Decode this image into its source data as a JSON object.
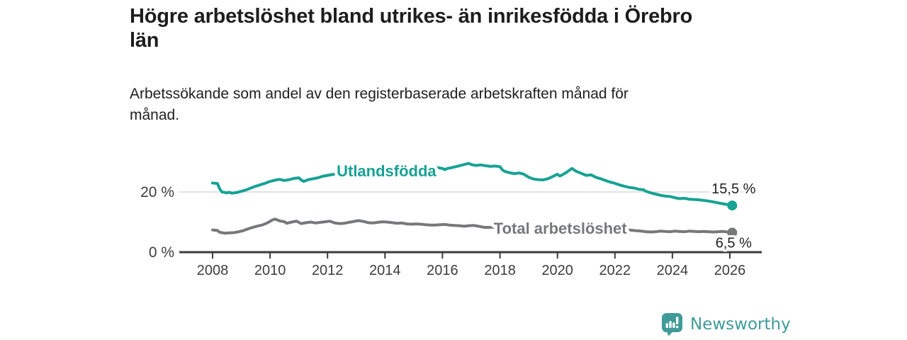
{
  "header": {
    "title_lines": [
      "Högre arbetslöshet bland utrikes- än inrikesfödda i Örebro",
      "län"
    ],
    "subtitle_lines": [
      "Arbetssökande som andel av den registerbaserade arbetskraften månad för",
      "månad."
    ]
  },
  "footer": {
    "brand": "Newsworthy",
    "brand_color": "#3f9b99",
    "logo_icon": "bar-chart-speech-bubble"
  },
  "colors": {
    "background": "#ffffff",
    "axis": "#3b3b3b",
    "grid": "#d8d8d8",
    "tick_text": "#3d3d3d",
    "value_text": "#1f1f1f"
  },
  "chart_data": {
    "type": "line",
    "title": "Högre arbetslöshet bland utrikes- än inrikesfödda i Örebro län",
    "subtitle": "Arbetssökande som andel av den registerbaserade arbetskraften månad för månad.",
    "xlabel": "",
    "ylabel": "",
    "xlim": [
      2006.85,
      2027.1
    ],
    "ylim": [
      0,
      35
    ],
    "grid": "horizontal-20-only",
    "legend_position": "inline-labels",
    "x_ticks": [
      2008,
      2010,
      2012,
      2014,
      2016,
      2018,
      2020,
      2022,
      2024,
      2026
    ],
    "y_ticks": [
      {
        "value": 0,
        "label": "0 %",
        "gridline": false
      },
      {
        "value": 20,
        "label": "20 %",
        "gridline": true
      }
    ],
    "series": [
      {
        "name": "Utlandsfödda",
        "color": "#17a295",
        "end_label": "15,5 %",
        "end_label_position": "above",
        "inline_label": {
          "text": "Utlandsfödda",
          "x": 2014.05,
          "y": 27.1
        },
        "points": [
          [
            2008.0,
            23.0
          ],
          [
            2008.17,
            22.8
          ],
          [
            2008.25,
            21.0
          ],
          [
            2008.33,
            20.0
          ],
          [
            2008.5,
            19.7
          ],
          [
            2008.58,
            19.9
          ],
          [
            2008.67,
            19.6
          ],
          [
            2008.83,
            19.8
          ],
          [
            2009.0,
            20.2
          ],
          [
            2009.17,
            20.7
          ],
          [
            2009.33,
            21.3
          ],
          [
            2009.5,
            21.9
          ],
          [
            2009.67,
            22.4
          ],
          [
            2009.83,
            22.9
          ],
          [
            2010.0,
            23.5
          ],
          [
            2010.17,
            23.9
          ],
          [
            2010.33,
            24.2
          ],
          [
            2010.5,
            23.8
          ],
          [
            2010.67,
            24.1
          ],
          [
            2010.83,
            24.5
          ],
          [
            2011.0,
            24.7
          ],
          [
            2011.08,
            24.0
          ],
          [
            2011.17,
            23.5
          ],
          [
            2011.33,
            24.1
          ],
          [
            2011.5,
            24.4
          ],
          [
            2011.67,
            24.7
          ],
          [
            2011.83,
            25.2
          ],
          [
            2012.0,
            25.5
          ],
          [
            2012.17,
            25.8
          ],
          [
            2012.33,
            25.9
          ],
          [
            2012.67,
            26.1
          ],
          [
            2013.0,
            26.4
          ],
          [
            2013.33,
            26.6
          ],
          [
            2013.67,
            26.8
          ],
          [
            2014.0,
            27.0
          ],
          [
            2014.33,
            27.2
          ],
          [
            2014.67,
            27.4
          ],
          [
            2015.0,
            27.5
          ],
          [
            2015.33,
            27.7
          ],
          [
            2015.67,
            27.9
          ],
          [
            2015.83,
            28.1
          ],
          [
            2016.0,
            27.8
          ],
          [
            2016.08,
            27.4
          ],
          [
            2016.17,
            27.8
          ],
          [
            2016.33,
            28.1
          ],
          [
            2016.5,
            28.5
          ],
          [
            2016.67,
            28.9
          ],
          [
            2016.83,
            29.3
          ],
          [
            2016.92,
            29.5
          ],
          [
            2017.0,
            29.1
          ],
          [
            2017.17,
            28.8
          ],
          [
            2017.33,
            29.0
          ],
          [
            2017.5,
            28.7
          ],
          [
            2017.67,
            28.5
          ],
          [
            2017.83,
            28.6
          ],
          [
            2018.0,
            28.4
          ],
          [
            2018.08,
            27.4
          ],
          [
            2018.17,
            26.8
          ],
          [
            2018.33,
            26.4
          ],
          [
            2018.5,
            26.1
          ],
          [
            2018.67,
            26.3
          ],
          [
            2018.83,
            25.9
          ],
          [
            2019.0,
            24.9
          ],
          [
            2019.17,
            24.3
          ],
          [
            2019.33,
            24.1
          ],
          [
            2019.5,
            24.0
          ],
          [
            2019.67,
            24.4
          ],
          [
            2019.83,
            25.1
          ],
          [
            2020.0,
            25.9
          ],
          [
            2020.08,
            25.3
          ],
          [
            2020.17,
            25.7
          ],
          [
            2020.33,
            26.6
          ],
          [
            2020.5,
            27.8
          ],
          [
            2020.58,
            27.3
          ],
          [
            2020.67,
            26.8
          ],
          [
            2020.83,
            26.2
          ],
          [
            2021.0,
            25.5
          ],
          [
            2021.17,
            25.7
          ],
          [
            2021.33,
            24.9
          ],
          [
            2021.5,
            24.4
          ],
          [
            2021.67,
            23.8
          ],
          [
            2021.83,
            23.3
          ],
          [
            2022.0,
            22.9
          ],
          [
            2022.17,
            22.3
          ],
          [
            2022.33,
            21.9
          ],
          [
            2022.5,
            21.5
          ],
          [
            2022.67,
            21.3
          ],
          [
            2022.83,
            20.9
          ],
          [
            2023.0,
            20.7
          ],
          [
            2023.08,
            20.2
          ],
          [
            2023.25,
            19.7
          ],
          [
            2023.42,
            19.3
          ],
          [
            2023.58,
            18.9
          ],
          [
            2023.75,
            18.6
          ],
          [
            2023.92,
            18.5
          ],
          [
            2024.08,
            18.1
          ],
          [
            2024.25,
            17.8
          ],
          [
            2024.42,
            17.9
          ],
          [
            2024.58,
            17.6
          ],
          [
            2024.75,
            17.5
          ],
          [
            2024.92,
            17.4
          ],
          [
            2025.08,
            17.2
          ],
          [
            2025.25,
            17.0
          ],
          [
            2025.42,
            16.7
          ],
          [
            2025.58,
            16.4
          ],
          [
            2025.75,
            16.1
          ],
          [
            2025.92,
            15.8
          ],
          [
            2026.08,
            15.5
          ]
        ]
      },
      {
        "name": "Total arbetslöshet",
        "color": "#77787b",
        "end_label": "6,5 %",
        "end_label_position": "below",
        "inline_label": {
          "text": "Total arbetslöshet",
          "x": 2020.1,
          "y": 8.0
        },
        "points": [
          [
            2008.0,
            7.4
          ],
          [
            2008.17,
            7.2
          ],
          [
            2008.25,
            6.6
          ],
          [
            2008.42,
            6.3
          ],
          [
            2008.58,
            6.4
          ],
          [
            2008.75,
            6.5
          ],
          [
            2008.92,
            6.8
          ],
          [
            2009.08,
            7.2
          ],
          [
            2009.25,
            7.8
          ],
          [
            2009.42,
            8.3
          ],
          [
            2009.58,
            8.7
          ],
          [
            2009.75,
            9.1
          ],
          [
            2009.92,
            9.8
          ],
          [
            2010.08,
            10.7
          ],
          [
            2010.17,
            11.0
          ],
          [
            2010.33,
            10.4
          ],
          [
            2010.5,
            10.1
          ],
          [
            2010.58,
            9.6
          ],
          [
            2010.75,
            10.0
          ],
          [
            2010.92,
            10.3
          ],
          [
            2011.08,
            9.5
          ],
          [
            2011.25,
            9.8
          ],
          [
            2011.42,
            10.0
          ],
          [
            2011.58,
            9.7
          ],
          [
            2011.75,
            9.9
          ],
          [
            2011.92,
            10.1
          ],
          [
            2012.08,
            10.3
          ],
          [
            2012.25,
            9.7
          ],
          [
            2012.42,
            9.5
          ],
          [
            2012.58,
            9.6
          ],
          [
            2012.75,
            9.9
          ],
          [
            2012.92,
            10.2
          ],
          [
            2013.08,
            10.5
          ],
          [
            2013.25,
            10.2
          ],
          [
            2013.42,
            9.8
          ],
          [
            2013.58,
            9.7
          ],
          [
            2013.75,
            9.9
          ],
          [
            2013.92,
            10.1
          ],
          [
            2014.08,
            10.0
          ],
          [
            2014.25,
            9.8
          ],
          [
            2014.42,
            9.6
          ],
          [
            2014.58,
            9.7
          ],
          [
            2014.75,
            9.4
          ],
          [
            2014.92,
            9.3
          ],
          [
            2015.08,
            9.4
          ],
          [
            2015.25,
            9.3
          ],
          [
            2015.42,
            9.1
          ],
          [
            2015.58,
            9.0
          ],
          [
            2015.75,
            9.0
          ],
          [
            2015.92,
            9.1
          ],
          [
            2016.08,
            9.2
          ],
          [
            2016.25,
            9.0
          ],
          [
            2016.42,
            8.9
          ],
          [
            2016.58,
            8.8
          ],
          [
            2016.75,
            8.6
          ],
          [
            2016.92,
            8.8
          ],
          [
            2017.08,
            8.9
          ],
          [
            2017.25,
            8.6
          ],
          [
            2017.42,
            8.3
          ],
          [
            2017.58,
            8.2
          ],
          [
            2017.75,
            8.3
          ],
          [
            2018.0,
            8.3
          ],
          [
            2018.5,
            8.1
          ],
          [
            2019.0,
            8.0
          ],
          [
            2019.5,
            8.0
          ],
          [
            2020.0,
            8.4
          ],
          [
            2020.5,
            9.0
          ],
          [
            2021.0,
            8.6
          ],
          [
            2021.5,
            8.1
          ],
          [
            2022.0,
            7.7
          ],
          [
            2022.42,
            7.4
          ],
          [
            2022.58,
            7.3
          ],
          [
            2022.75,
            7.1
          ],
          [
            2022.92,
            7.0
          ],
          [
            2023.08,
            6.8
          ],
          [
            2023.25,
            6.7
          ],
          [
            2023.42,
            6.8
          ],
          [
            2023.58,
            7.0
          ],
          [
            2023.75,
            6.9
          ],
          [
            2023.92,
            6.8
          ],
          [
            2024.08,
            7.0
          ],
          [
            2024.25,
            6.9
          ],
          [
            2024.42,
            6.8
          ],
          [
            2024.58,
            7.0
          ],
          [
            2024.75,
            6.9
          ],
          [
            2024.92,
            6.8
          ],
          [
            2025.08,
            6.9
          ],
          [
            2025.25,
            6.8
          ],
          [
            2025.42,
            6.7
          ],
          [
            2025.58,
            6.8
          ],
          [
            2025.75,
            6.9
          ],
          [
            2025.92,
            6.7
          ],
          [
            2026.08,
            6.5
          ]
        ]
      }
    ]
  }
}
